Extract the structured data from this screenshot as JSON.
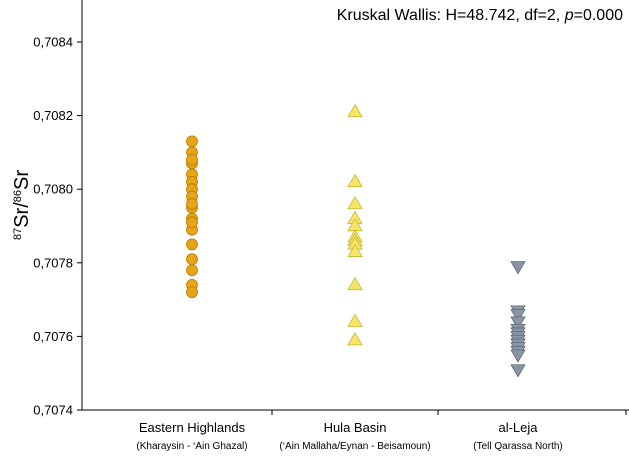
{
  "chart_data": {
    "type": "scatter",
    "title_prefix": "Kruskal Wallis: H=48.742, df=2, ",
    "title_p": "p",
    "title_suffix": "=0.000",
    "ylabel": {
      "sup1": "87",
      "base1": "Sr/",
      "sup2": "86",
      "base2": "Sr"
    },
    "ylim": [
      0.7074,
      0.7085
    ],
    "yticks": [
      {
        "value": 0.7074,
        "label": "0,7074"
      },
      {
        "value": 0.7076,
        "label": "0,7076"
      },
      {
        "value": 0.7078,
        "label": "0,7078"
      },
      {
        "value": 0.708,
        "label": "0,7080"
      },
      {
        "value": 0.7082,
        "label": "0,7082"
      },
      {
        "value": 0.7084,
        "label": "0,7084"
      }
    ],
    "grid": false,
    "categories": [
      {
        "label": "Eastern Highlands",
        "sublabel": "(Kharaysin - ‘Ain Ghazal)"
      },
      {
        "label": "Hula Basin",
        "sublabel": "(‘Ain Mallaha/Eynan - Beisamoun)"
      },
      {
        "label": "al-Leja",
        "sublabel": "(Tell Qarassa North)"
      }
    ],
    "series": [
      {
        "marker": "circle",
        "color": "#E8A317",
        "stroke": "#B37A00",
        "values": [
          0.70813,
          0.7081,
          0.70807,
          0.70804,
          0.70802,
          0.708,
          0.70798,
          0.70795,
          0.70792,
          0.70789,
          0.70785,
          0.70781,
          0.70778,
          0.70774,
          0.70772,
          0.70791,
          0.70796,
          0.70808
        ]
      },
      {
        "marker": "triangle-up",
        "color": "#F5E66A",
        "stroke": "#C9B52E",
        "values": [
          0.70821,
          0.70802,
          0.70796,
          0.70792,
          0.7079,
          0.70787,
          0.70786,
          0.70785,
          0.70783,
          0.70774,
          0.70764,
          0.70759
        ]
      },
      {
        "marker": "triangle-down",
        "color": "#8A96A3",
        "stroke": "#5E6A77",
        "values": [
          0.70779,
          0.70767,
          0.70766,
          0.70764,
          0.70762,
          0.70761,
          0.7076,
          0.70759,
          0.70758,
          0.70757,
          0.70756,
          0.70755,
          0.70751
        ]
      }
    ]
  }
}
